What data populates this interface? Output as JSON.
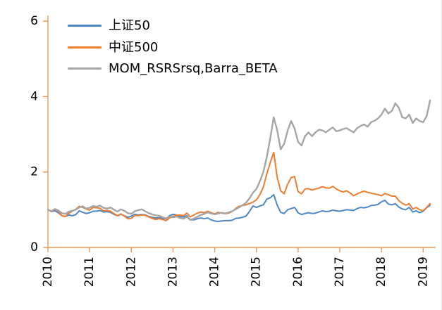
{
  "chart_data": {
    "type": "line",
    "title": "",
    "legend_position": "top-left-inside",
    "grid": false,
    "axis_color": "#E89A55",
    "x_axis": {
      "start_year": 2010,
      "end_year_extent": 2019.3,
      "tick_years": [
        2010,
        2011,
        2012,
        2013,
        2014,
        2015,
        2016,
        2017,
        2018,
        2019
      ],
      "points_per_year": 12,
      "label_rotation_deg": -90
    },
    "y_axis": {
      "min": 0,
      "max": 6,
      "ticks": [
        0,
        2,
        4,
        6
      ]
    },
    "series": [
      {
        "name": "上证50",
        "color": "#4E87C6",
        "width": 2,
        "values": [
          1.0,
          0.95,
          0.97,
          0.92,
          0.84,
          0.82,
          0.86,
          0.84,
          0.87,
          0.97,
          0.93,
          0.9,
          0.92,
          0.96,
          0.96,
          0.98,
          0.94,
          0.95,
          0.93,
          0.88,
          0.84,
          0.88,
          0.84,
          0.8,
          0.83,
          0.88,
          0.86,
          0.87,
          0.86,
          0.82,
          0.8,
          0.78,
          0.79,
          0.77,
          0.76,
          0.84,
          0.88,
          0.86,
          0.82,
          0.81,
          0.84,
          0.73,
          0.73,
          0.76,
          0.78,
          0.76,
          0.78,
          0.73,
          0.7,
          0.69,
          0.7,
          0.71,
          0.71,
          0.72,
          0.77,
          0.78,
          0.8,
          0.83,
          0.95,
          1.1,
          1.06,
          1.1,
          1.13,
          1.28,
          1.32,
          1.4,
          1.12,
          0.93,
          0.9,
          1.0,
          1.03,
          1.06,
          0.92,
          0.87,
          0.9,
          0.92,
          0.9,
          0.91,
          0.94,
          0.97,
          0.95,
          0.96,
          0.99,
          0.97,
          0.96,
          0.98,
          1.0,
          0.99,
          0.98,
          1.03,
          1.06,
          1.05,
          1.07,
          1.11,
          1.12,
          1.14,
          1.21,
          1.25,
          1.15,
          1.13,
          1.16,
          1.07,
          1.02,
          1.0,
          1.06,
          0.94,
          0.97,
          0.92,
          0.96,
          1.05,
          1.12
        ]
      },
      {
        "name": "中证500",
        "color": "#ED7D31",
        "width": 2,
        "values": [
          1.0,
          0.95,
          1.01,
          0.96,
          0.84,
          0.82,
          0.91,
          0.96,
          1.01,
          1.09,
          1.06,
          1.02,
          0.99,
          1.06,
          1.05,
          1.04,
          0.97,
          0.98,
          0.96,
          0.9,
          0.84,
          0.89,
          0.83,
          0.76,
          0.77,
          0.85,
          0.84,
          0.86,
          0.85,
          0.81,
          0.77,
          0.74,
          0.76,
          0.74,
          0.71,
          0.78,
          0.83,
          0.85,
          0.86,
          0.84,
          0.91,
          0.81,
          0.86,
          0.91,
          0.94,
          0.92,
          0.96,
          0.92,
          0.89,
          0.93,
          0.91,
          0.89,
          0.91,
          0.95,
          1.03,
          1.09,
          1.11,
          1.13,
          1.16,
          1.2,
          1.26,
          1.4,
          1.6,
          1.95,
          2.25,
          2.52,
          1.85,
          1.5,
          1.42,
          1.68,
          1.85,
          1.88,
          1.48,
          1.42,
          1.55,
          1.56,
          1.52,
          1.55,
          1.57,
          1.61,
          1.58,
          1.57,
          1.62,
          1.55,
          1.5,
          1.47,
          1.5,
          1.44,
          1.37,
          1.42,
          1.46,
          1.49,
          1.46,
          1.44,
          1.42,
          1.4,
          1.37,
          1.43,
          1.4,
          1.36,
          1.36,
          1.24,
          1.17,
          1.12,
          1.16,
          1.02,
          1.06,
          1.0,
          0.97,
          1.06,
          1.16
        ]
      },
      {
        "name": "MOM_RSRSrsq,Barra_BETA",
        "color": "#A5A5A5",
        "width": 2.4,
        "values": [
          1.0,
          0.96,
          1.02,
          0.98,
          0.91,
          0.89,
          0.95,
          0.97,
          1.0,
          1.06,
          1.09,
          1.03,
          1.05,
          1.1,
          1.08,
          1.11,
          1.05,
          1.03,
          1.06,
          1.0,
          0.95,
          1.01,
          0.97,
          0.91,
          0.89,
          0.96,
          0.99,
          1.01,
          0.96,
          0.91,
          0.88,
          0.85,
          0.84,
          0.8,
          0.77,
          0.82,
          0.8,
          0.82,
          0.78,
          0.76,
          0.81,
          0.73,
          0.76,
          0.81,
          0.86,
          0.89,
          0.93,
          0.9,
          0.88,
          0.9,
          0.92,
          0.9,
          0.93,
          0.96,
          1.01,
          1.06,
          1.12,
          1.18,
          1.3,
          1.45,
          1.55,
          1.75,
          2.0,
          2.4,
          2.9,
          3.45,
          3.1,
          2.6,
          2.75,
          3.1,
          3.35,
          3.15,
          2.8,
          2.7,
          2.95,
          3.05,
          2.95,
          3.05,
          3.12,
          3.1,
          3.05,
          3.12,
          3.18,
          3.08,
          3.1,
          3.14,
          3.16,
          3.1,
          3.05,
          3.16,
          3.22,
          3.26,
          3.2,
          3.32,
          3.36,
          3.42,
          3.52,
          3.68,
          3.55,
          3.62,
          3.82,
          3.7,
          3.45,
          3.42,
          3.52,
          3.3,
          3.42,
          3.35,
          3.32,
          3.48,
          3.9
        ]
      }
    ]
  }
}
